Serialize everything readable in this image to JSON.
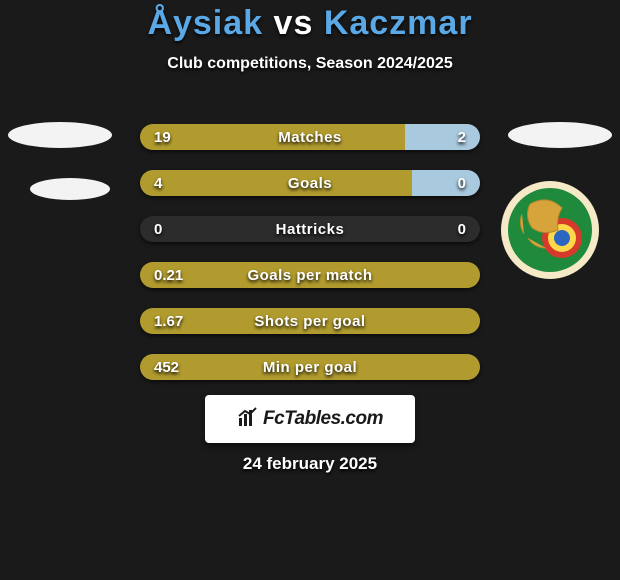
{
  "accent_color": "#5aa9e6",
  "title_parts": {
    "p1": "Åysiak",
    "vs": "vs",
    "p2": "Kaczmar"
  },
  "subtitle": "Club competitions, Season 2024/2025",
  "bar_colors": {
    "left": "#b19b2e",
    "right": "#a8c9de",
    "full": "#b19b2e",
    "track": "#2c2c2c"
  },
  "rows": [
    {
      "label": "Matches",
      "left": "19",
      "right": "2",
      "left_pct": 78,
      "right_pct": 22,
      "mode": "split"
    },
    {
      "label": "Goals",
      "left": "4",
      "right": "0",
      "left_pct": 80,
      "right_pct": 20,
      "mode": "split"
    },
    {
      "label": "Hattricks",
      "left": "0",
      "right": "0",
      "left_pct": 0,
      "right_pct": 0,
      "mode": "empty"
    },
    {
      "label": "Goals per match",
      "left": "0.21",
      "right": "",
      "left_pct": 100,
      "right_pct": 0,
      "mode": "full"
    },
    {
      "label": "Shots per goal",
      "left": "1.67",
      "right": "",
      "left_pct": 100,
      "right_pct": 0,
      "mode": "full"
    },
    {
      "label": "Min per goal",
      "left": "452",
      "right": "",
      "left_pct": 100,
      "right_pct": 0,
      "mode": "full"
    }
  ],
  "crest": {
    "outer": "#f5e9c8",
    "inner": "#1f8a3b",
    "rings": [
      "#d63a2a",
      "#ffd84a",
      "#2a66c2"
    ],
    "lion": "#d6a43a"
  },
  "footer_brand": "FcTables.com",
  "date": "24 february 2025"
}
